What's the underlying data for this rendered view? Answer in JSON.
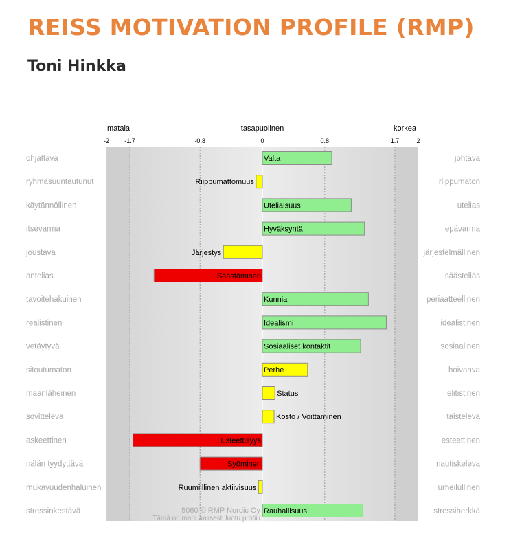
{
  "header": {
    "title": "REISS MOTIVATION PROFILE (RMP)",
    "person_name": "Toni Hinkka"
  },
  "chart_data": {
    "type": "bar",
    "orientation": "horizontal",
    "top_labels": {
      "left": "matala",
      "center": "tasapuolinen",
      "right": "korkea"
    },
    "ticks": [
      {
        "value": -2,
        "label": "-2"
      },
      {
        "value": -1.7,
        "label": "-1.7"
      },
      {
        "value": -0.8,
        "label": "-0.8"
      },
      {
        "value": 0,
        "label": "0"
      },
      {
        "value": 0.8,
        "label": "0.8"
      },
      {
        "value": 1.7,
        "label": "1.7"
      },
      {
        "value": 2,
        "label": "2"
      }
    ],
    "xlim": [
      -2,
      2
    ],
    "reference_lines": [
      -1.7,
      -0.8,
      0.8,
      1.7
    ],
    "colors": {
      "low": "#ee0000",
      "balanced": "#ffff00",
      "high": "#90ee90",
      "background": "#d9d9d9"
    },
    "rows": [
      {
        "left": "ohjattava",
        "right": "johtava",
        "name": "Valta",
        "value": 0.89
      },
      {
        "left": "ryhmäsuuntautunut",
        "right": "riippumaton",
        "name": "Riippumattomuus",
        "value": -0.08
      },
      {
        "left": "käytännöllinen",
        "right": "utelias",
        "name": "Uteliaisuus",
        "value": 1.14
      },
      {
        "left": "itsevarma",
        "right": "epävarma",
        "name": "Hyväksyntä",
        "value": 1.31
      },
      {
        "left": "joustava",
        "right": "järjestelmällinen",
        "name": "Järjestys",
        "value": -0.5
      },
      {
        "left": "antelias",
        "right": "säästeliäs",
        "name": "Säästäminen",
        "value": -1.39
      },
      {
        "left": "tavoitehakuinen",
        "right": "periaatteellinen",
        "name": "Kunnia",
        "value": 1.36
      },
      {
        "left": "realistinen",
        "right": "idealistinen",
        "name": "Idealismi",
        "value": 1.59
      },
      {
        "left": "vetäytyvä",
        "right": "sosiaalinen",
        "name": "Sosiaaliset kontaktit",
        "value": 1.26
      },
      {
        "left": "sitoutumaton",
        "right": "hoivaava",
        "name": "Perhe",
        "value": 0.58
      },
      {
        "left": "maanläheinen",
        "right": "elitistinen",
        "name": "Status",
        "value": 0.16
      },
      {
        "left": "sovitteleva",
        "right": "taisteleva",
        "name": "Kosto / Voittaminen",
        "value": 0.15
      },
      {
        "left": "askeettinen",
        "right": "esteettinen",
        "name": "Esteettisyys",
        "value": -1.66
      },
      {
        "left": "nälän tyydyttävä",
        "right": "nautiskeleva",
        "name": "Syöminen",
        "value": -0.8
      },
      {
        "left": "mukavuudenhaluinen",
        "right": "urheilullinen",
        "name": "Ruumiillinen aktiivisuus",
        "value": -0.05
      },
      {
        "left": "stressinkestävä",
        "right": "stressiherkkä",
        "name": "Rauhallisuus",
        "value": 1.29
      }
    ],
    "footer": {
      "watermark": "5060 © RMP Nordic Oy",
      "note": "Tämä on manuaalisesti luotu profiili"
    }
  }
}
